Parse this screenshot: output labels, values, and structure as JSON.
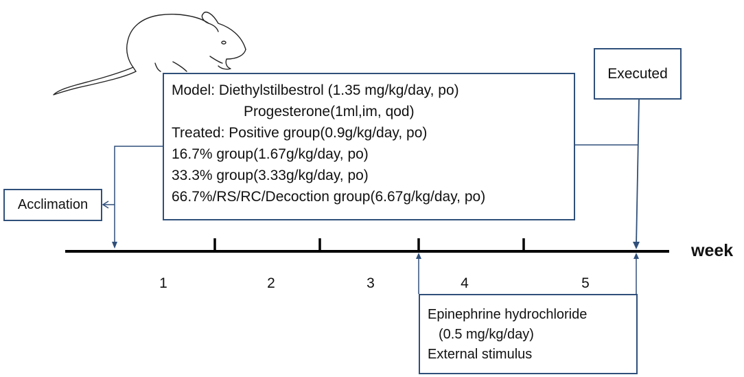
{
  "model_box": {
    "line1": "Model: Diethylstilbestrol  (1.35 mg/kg/day, po)",
    "line2": "Progesterone(1ml,im, qod)",
    "line3": "Treated: Positive group(0.9g/kg/day, po)",
    "line4": "16.7% group(1.67g/kg/day, po)",
    "line5": "33.3% group(3.33g/kg/day, po)",
    "line6": "66.7%/RS/RC/Decoction group(6.67g/kg/day, po)"
  },
  "acclimation_label": "Acclimation",
  "executed_label": "Executed",
  "stimulus_box": {
    "line1": "Epinephrine hydrochloride",
    "line2": "(0.5 mg/kg/day)",
    "line3": "External stimulus"
  },
  "timeline": {
    "unit_label": "week",
    "weeks": [
      "1",
      "2",
      "3",
      "4",
      "5"
    ]
  },
  "colors": {
    "box_border": "#2f4f7a",
    "timeline": "#000000"
  },
  "icons": [
    "rat-icon"
  ]
}
